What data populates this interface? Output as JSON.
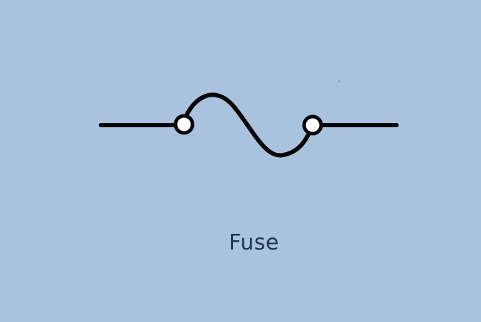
{
  "diagram": {
    "label": "Fuse",
    "stroke_color": "#050505",
    "terminal_fill": "#ffffff",
    "background_color": "#a9c3df",
    "label_color": "#24344d"
  }
}
